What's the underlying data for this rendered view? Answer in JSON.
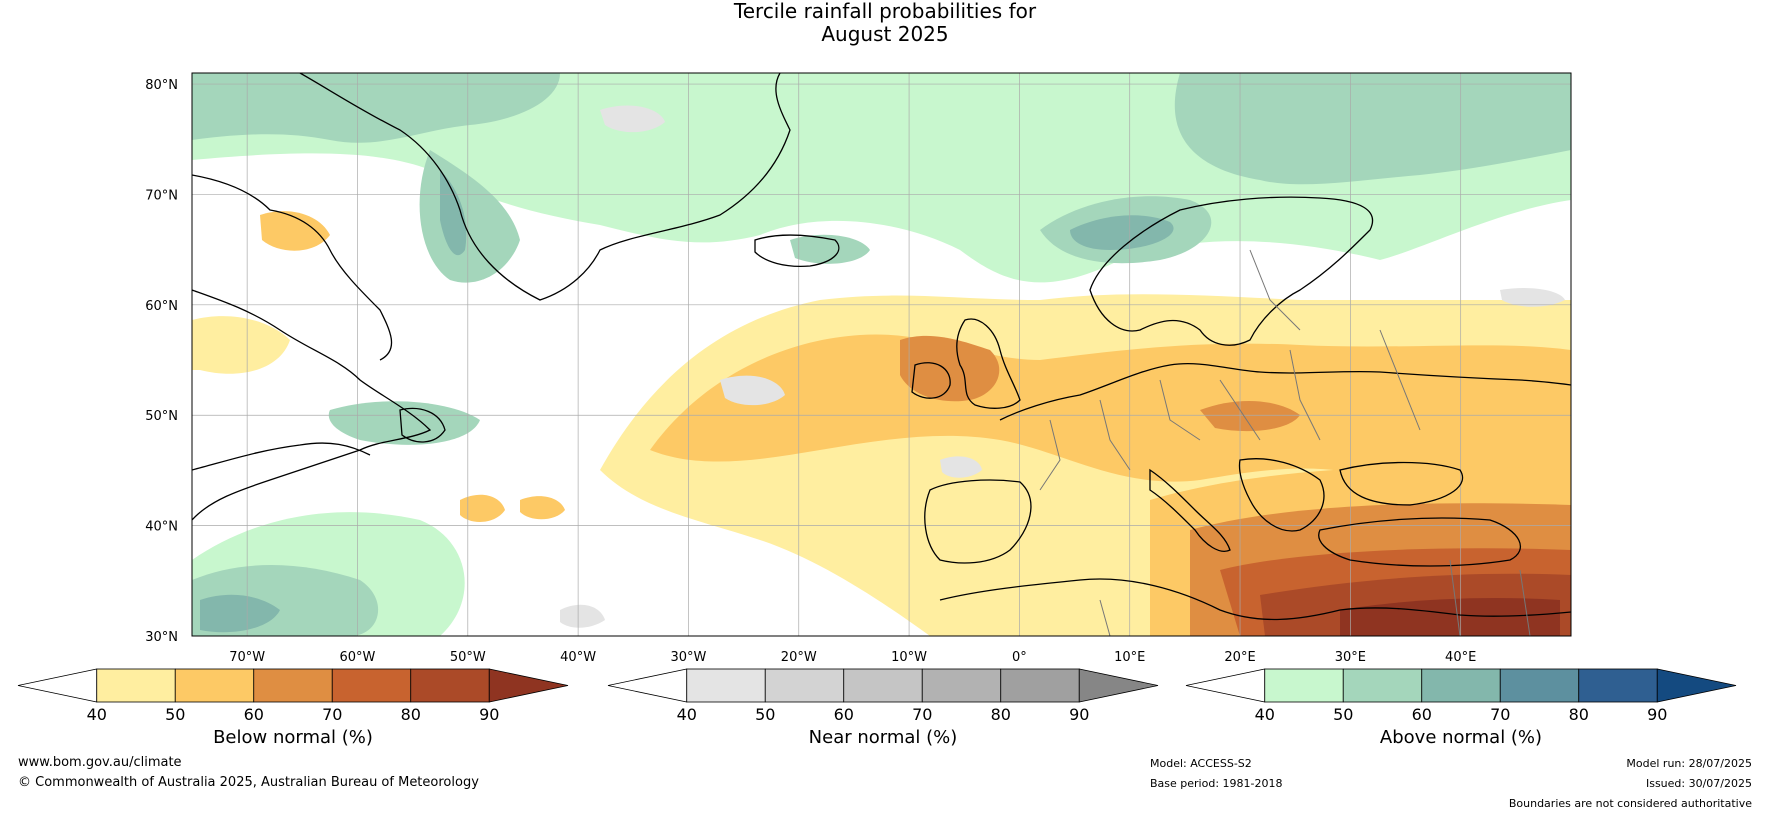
{
  "title": {
    "line1": "Tercile rainfall probabilities for",
    "line2": "August 2025"
  },
  "map": {
    "lat_labels": [
      "80°N",
      "70°N",
      "60°N",
      "50°N",
      "40°N",
      "30°N"
    ],
    "lon_labels": [
      "70°W",
      "60°W",
      "50°W",
      "40°W",
      "30°W",
      "20°W",
      "10°W",
      "0°",
      "10°E",
      "20°E",
      "30°E",
      "40°E"
    ],
    "lat_values": [
      80,
      70,
      60,
      50,
      40,
      30
    ],
    "lon_values": [
      -70,
      -60,
      -50,
      -40,
      -30,
      -20,
      -10,
      0,
      10,
      20,
      30,
      40
    ],
    "extent": {
      "lon": [
        -75,
        50
      ],
      "lat": [
        30,
        81
      ]
    },
    "colors": {
      "ocean": "#ffffff",
      "grid": "#aaaaaa",
      "coast": "#000000",
      "border": "#777777"
    }
  },
  "colorbars": [
    {
      "label": "Below normal (%)",
      "ticks": [
        "40",
        "50",
        "60",
        "70",
        "80",
        "90"
      ],
      "colors": [
        "#ffeea0",
        "#fdc965",
        "#df8e42",
        "#c8632f",
        "#ab4a28"
      ],
      "extend_color": "#8f3421"
    },
    {
      "label": "Near normal (%)",
      "ticks": [
        "40",
        "50",
        "60",
        "70",
        "80",
        "90"
      ],
      "colors": [
        "#e4e4e4",
        "#d3d3d3",
        "#c5c5c5",
        "#b2b2b2",
        "#a0a0a0"
      ],
      "extend_color": "#868686"
    },
    {
      "label": "Above normal (%)",
      "ticks": [
        "40",
        "50",
        "60",
        "70",
        "80",
        "90"
      ],
      "colors": [
        "#c8f7ce",
        "#a4d6bb",
        "#83b7ac",
        "#5d909f",
        "#2f5f91"
      ],
      "extend_color": "#144a80"
    }
  ],
  "footer": {
    "website": "www.bom.gov.au/climate",
    "copyright": "© Commonwealth of Australia 2025, Australian Bureau of Meteorology",
    "model": "Model: ACCESS-S2",
    "base_period": "Base period: 1981-2018",
    "model_run": "Model run: 28/07/2025",
    "issued": "Issued: 30/07/2025",
    "disclaimer": "Boundaries are not considered authoritative"
  }
}
